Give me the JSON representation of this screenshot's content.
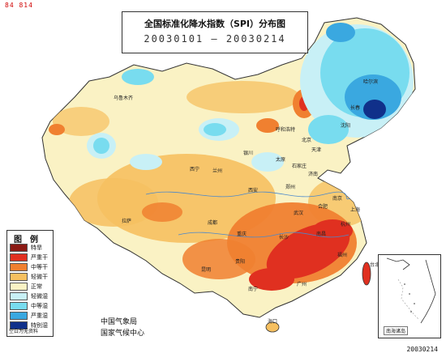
{
  "corner_label": "84 814",
  "map": {
    "title": "全国标准化降水指数（SPI）分布图",
    "date_range": "20030101 — 20030214",
    "org_line1": "中国气象局",
    "org_line2": "国家气候中心",
    "footer_date": "20030214",
    "inset_label": "南海诸岛"
  },
  "legend": {
    "title": "图例",
    "items": [
      {
        "label": "特旱",
        "color": "#8b1a14"
      },
      {
        "label": "严重干",
        "color": "#e03020"
      },
      {
        "label": "中等干",
        "color": "#f08030"
      },
      {
        "label": "轻微干",
        "color": "#f6c060"
      },
      {
        "label": "正常",
        "color": "#faf2c4"
      },
      {
        "label": "轻微湿",
        "color": "#c8f0f6"
      },
      {
        "label": "中等湿",
        "color": "#78dcef"
      },
      {
        "label": "严重湿",
        "color": "#3aa8e0"
      },
      {
        "label": "特别湿",
        "color": "#10308a"
      }
    ],
    "footer": "空白为无资料"
  },
  "cities": [
    "哈尔滨",
    "长春",
    "沈阳",
    "呼和浩特",
    "北京",
    "天津",
    "太原",
    "石家庄",
    "济南",
    "郑州",
    "西安",
    "兰州",
    "西宁",
    "银川",
    "乌鲁木齐",
    "拉萨",
    "成都",
    "重庆",
    "贵阳",
    "昆明",
    "南宁",
    "广州",
    "长沙",
    "武汉",
    "南昌",
    "合肥",
    "南京",
    "上海",
    "杭州",
    "福州",
    "台北",
    "海口"
  ]
}
